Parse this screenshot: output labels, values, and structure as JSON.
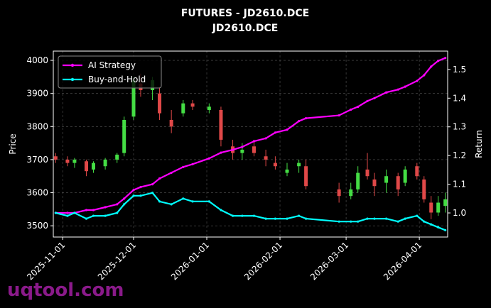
{
  "chart_data": {
    "type": "candlestick",
    "title": "FUTURES - JD2610.DCE",
    "subtitle": "JD2610.DCE",
    "ylabel": "Price",
    "y2label": "Return",
    "x": [
      "2025-10-29",
      "2025-11-03",
      "2025-11-06",
      "2025-11-11",
      "2025-11-14",
      "2025-11-19",
      "2025-11-24",
      "2025-11-27",
      "2025-12-01",
      "2025-12-04",
      "2025-12-09",
      "2025-12-12",
      "2025-12-17",
      "2025-12-22",
      "2025-12-26",
      "2026-01-02",
      "2026-01-07",
      "2026-01-12",
      "2026-01-16",
      "2026-01-21",
      "2026-01-26",
      "2026-01-30",
      "2026-02-04",
      "2026-02-09",
      "2026-02-12",
      "2026-02-26",
      "2026-03-03",
      "2026-03-06",
      "2026-03-10",
      "2026-03-13",
      "2026-03-18",
      "2026-03-23",
      "2026-03-26",
      "2026-03-31",
      "2026-04-03",
      "2026-04-06",
      "2026-04-09",
      "2026-04-12"
    ],
    "open": [
      3710,
      3700,
      3690,
      3695,
      3670,
      3680,
      3700,
      3720,
      3830,
      3930,
      3910,
      3900,
      3820,
      3840,
      3870,
      3850,
      3850,
      3740,
      3720,
      3740,
      3710,
      3690,
      3660,
      3680,
      3680,
      3610,
      3590,
      3610,
      3670,
      3640,
      3630,
      3650,
      3630,
      3680,
      3640,
      3570,
      3540,
      3560
    ],
    "high": [
      3720,
      3710,
      3705,
      3700,
      3695,
      3705,
      3720,
      3830,
      3950,
      3960,
      3950,
      3920,
      3850,
      3880,
      3880,
      3870,
      3860,
      3760,
      3750,
      3760,
      3730,
      3710,
      3690,
      3700,
      3700,
      3630,
      3630,
      3680,
      3720,
      3660,
      3670,
      3660,
      3680,
      3690,
      3650,
      3590,
      3590,
      3600
    ],
    "low": [
      3690,
      3680,
      3675,
      3650,
      3660,
      3670,
      3690,
      3710,
      3820,
      3890,
      3880,
      3820,
      3780,
      3830,
      3850,
      3840,
      3740,
      3700,
      3700,
      3710,
      3680,
      3670,
      3650,
      3660,
      3610,
      3570,
      3580,
      3600,
      3640,
      3590,
      3600,
      3590,
      3620,
      3640,
      3570,
      3520,
      3530,
      3540
    ],
    "close": [
      3700,
      3690,
      3700,
      3665,
      3690,
      3700,
      3715,
      3820,
      3940,
      3910,
      3940,
      3840,
      3800,
      3870,
      3860,
      3860,
      3760,
      3720,
      3730,
      3720,
      3700,
      3680,
      3670,
      3690,
      3620,
      3590,
      3610,
      3660,
      3650,
      3620,
      3650,
      3610,
      3670,
      3650,
      3580,
      3540,
      3570,
      3580
    ],
    "up_color": "#44dd44",
    "down_color": "#e04848",
    "series": [
      {
        "name": "AI Strategy",
        "color": "#ff00ff",
        "axis": "y2",
        "values": [
          1.0,
          1.0,
          1.0,
          1.01,
          1.01,
          1.02,
          1.03,
          1.05,
          1.08,
          1.09,
          1.1,
          1.12,
          1.14,
          1.16,
          1.17,
          1.19,
          1.21,
          1.22,
          1.23,
          1.25,
          1.26,
          1.28,
          1.29,
          1.32,
          1.33,
          1.34,
          1.36,
          1.37,
          1.39,
          1.4,
          1.42,
          1.43,
          1.44,
          1.46,
          1.48,
          1.51,
          1.53,
          1.54
        ]
      },
      {
        "name": "Buy-and-Hold",
        "color": "#00ffff",
        "axis": "y2",
        "values": [
          1.0,
          0.99,
          1.0,
          0.98,
          0.99,
          0.99,
          1.0,
          1.03,
          1.06,
          1.06,
          1.07,
          1.04,
          1.03,
          1.05,
          1.04,
          1.04,
          1.01,
          0.99,
          0.99,
          0.99,
          0.98,
          0.98,
          0.98,
          0.99,
          0.98,
          0.97,
          0.97,
          0.97,
          0.98,
          0.98,
          0.98,
          0.97,
          0.98,
          0.99,
          0.97,
          0.96,
          0.95,
          0.94
        ]
      }
    ],
    "xlim": [
      "2025-10-28",
      "2026-04-13"
    ],
    "xticks": [
      "2025-11-01",
      "2025-12-01",
      "2026-01-01",
      "2026-02-01",
      "2026-03-01",
      "2026-04-01"
    ],
    "ylim": [
      3466,
      4028
    ],
    "yticks": [
      3500,
      3600,
      3700,
      3800,
      3900,
      4000
    ],
    "y2lim": [
      0.916,
      1.564
    ],
    "y2ticks": [
      {
        "value": 1.0,
        "label": "1.0"
      },
      {
        "value": 1.1,
        "label": "1.1"
      },
      {
        "value": 1.2,
        "label": "1.2"
      },
      {
        "value": 1.3,
        "label": "1.3"
      },
      {
        "value": 1.4,
        "label": "1.4"
      },
      {
        "value": 1.5,
        "label": "1.5"
      }
    ],
    "grid": true,
    "legend": "upper left"
  },
  "watermark": "uqtool.com"
}
